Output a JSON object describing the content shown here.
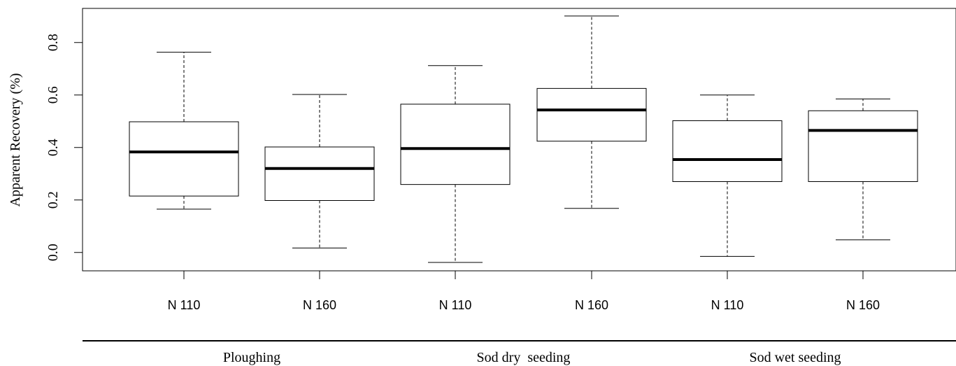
{
  "chart_data": {
    "type": "box",
    "ylabel": "Apparent Recovery (%)",
    "ylim": [
      -0.07,
      0.93
    ],
    "yticks": [
      "0.0",
      "0.2",
      "0.4",
      "0.6",
      "0.8"
    ],
    "ytick_values": [
      0.0,
      0.2,
      0.4,
      0.6,
      0.8
    ],
    "categories": [
      "N 110",
      "N 160",
      "N 110",
      "N 160",
      "N 110",
      "N 160"
    ],
    "groups": [
      {
        "label": "Ploughing",
        "members": [
          0,
          1
        ]
      },
      {
        "label": "Sod dry  seeding",
        "members": [
          2,
          3
        ]
      },
      {
        "label": "Sod wet seeding",
        "members": [
          4,
          5
        ]
      }
    ],
    "boxes": [
      {
        "min": 0.165,
        "q1": 0.215,
        "median": 0.383,
        "q3": 0.498,
        "max": 0.763
      },
      {
        "min": 0.017,
        "q1": 0.198,
        "median": 0.32,
        "q3": 0.402,
        "max": 0.602
      },
      {
        "min": -0.038,
        "q1": 0.259,
        "median": 0.396,
        "q3": 0.565,
        "max": 0.712
      },
      {
        "min": 0.168,
        "q1": 0.424,
        "median": 0.543,
        "q3": 0.625,
        "max": 0.901
      },
      {
        "min": -0.015,
        "q1": 0.27,
        "median": 0.354,
        "q3": 0.502,
        "max": 0.6
      },
      {
        "min": 0.048,
        "q1": 0.27,
        "median": 0.465,
        "q3": 0.54,
        "max": 0.585
      }
    ]
  }
}
